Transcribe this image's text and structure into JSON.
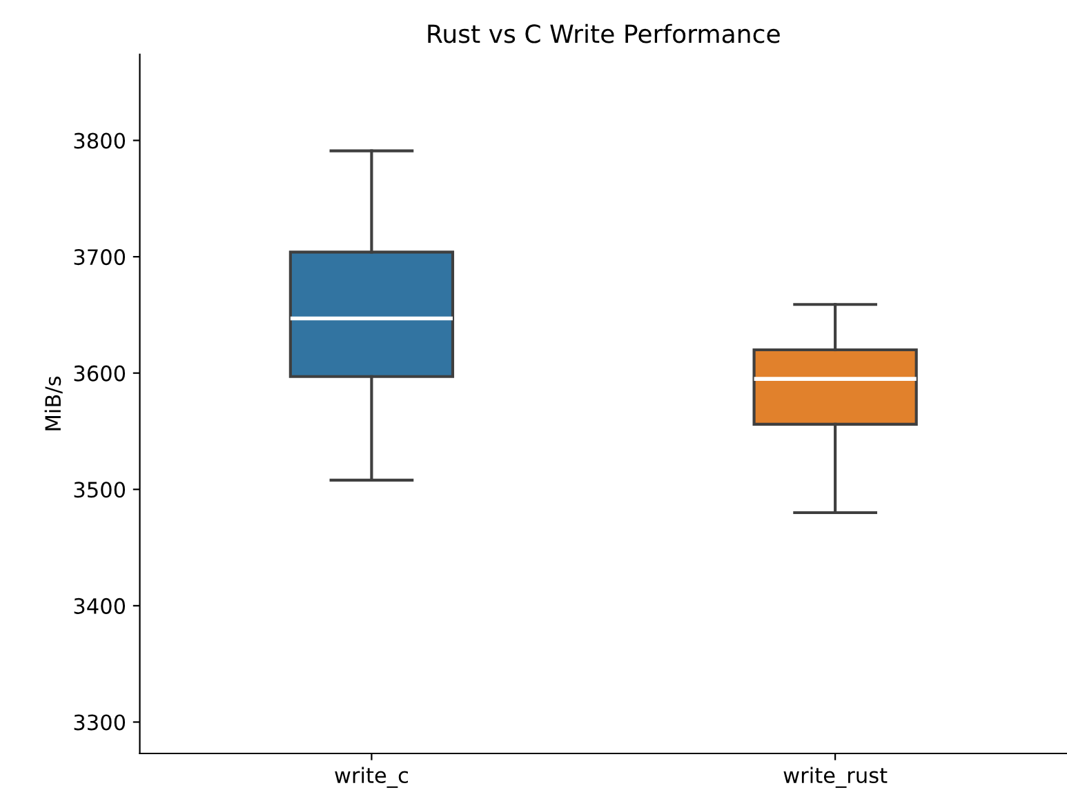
{
  "chart_data": {
    "type": "box",
    "title": "Rust vs C Write Performance",
    "ylabel": "MiB/s",
    "categories": [
      "write_c",
      "write_rust"
    ],
    "colors": [
      "#3274a1",
      "#e1812c"
    ],
    "boxes": [
      {
        "low": 3508,
        "q1": 3597,
        "median": 3647,
        "q3": 3704,
        "high": 3791
      },
      {
        "low": 3480,
        "q1": 3556,
        "median": 3595,
        "q3": 3620,
        "high": 3659
      }
    ],
    "ylim": [
      3273,
      3874
    ],
    "yticks": [
      3300,
      3400,
      3500,
      3600,
      3700,
      3800
    ],
    "grid": false
  }
}
